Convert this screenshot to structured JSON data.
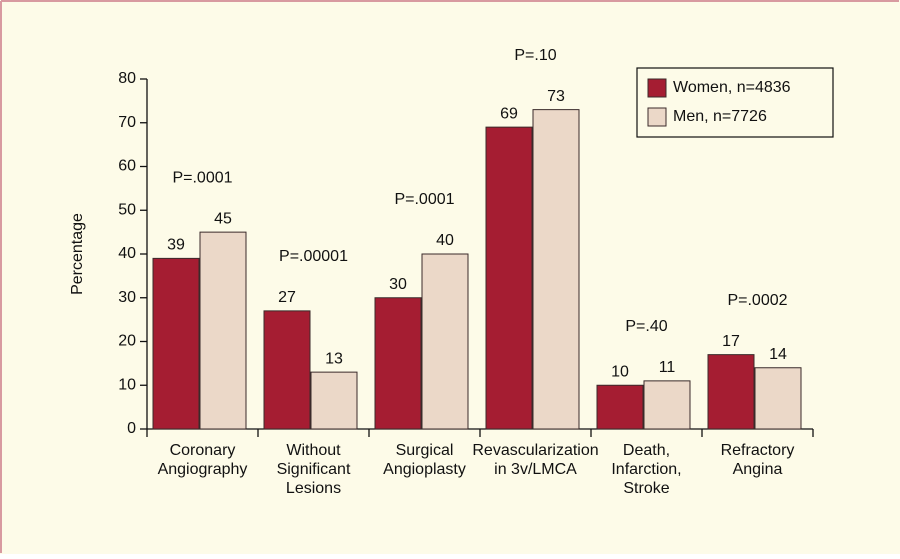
{
  "chart_data": {
    "type": "bar",
    "categories": [
      [
        "Coronary",
        "Angiography"
      ],
      [
        "Without",
        "Significant",
        "Lesions"
      ],
      [
        "Surgical",
        "Angioplasty"
      ],
      [
        "Revascularization",
        "in 3v/LMCA"
      ],
      [
        "Death,",
        "Infarction,",
        "Stroke"
      ],
      [
        "Refractory",
        "Angina"
      ]
    ],
    "series": [
      {
        "name": "Women, n=4836",
        "color": "#a51d32",
        "values": [
          39,
          27,
          30,
          69,
          10,
          17
        ]
      },
      {
        "name": "Men, n=7726",
        "color": "#ebd8c8",
        "values": [
          45,
          13,
          40,
          73,
          11,
          14
        ]
      }
    ],
    "annotations": [
      "P=.0001",
      "P=.00001",
      "P=.0001",
      "P=.10",
      "P=.40",
      "P=.0002"
    ],
    "ylabel": "Percentage",
    "ylim": [
      0,
      80
    ],
    "yticks": [
      0,
      10,
      20,
      30,
      40,
      50,
      60,
      70,
      80
    ],
    "legend": "upper right"
  }
}
